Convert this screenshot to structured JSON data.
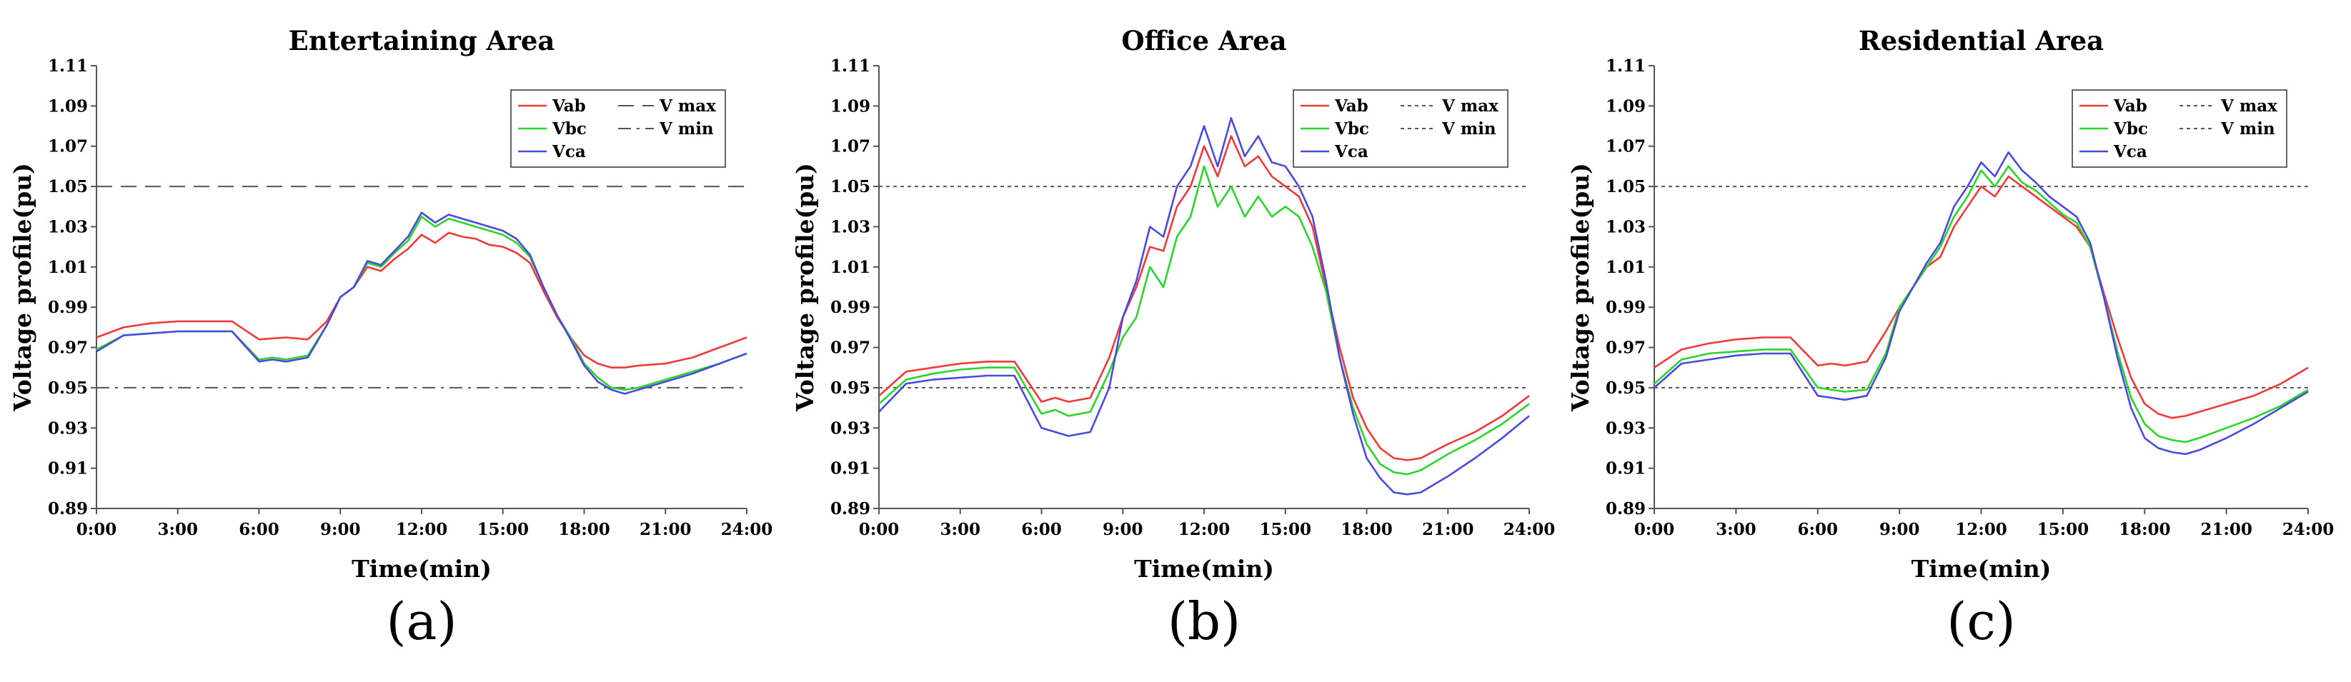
{
  "figure": {
    "panel_labels": [
      "(a)",
      "(b)",
      "(c)"
    ]
  },
  "chart_data": [
    {
      "type": "line",
      "title": "Entertaining Area",
      "xlabel": "Time(min)",
      "ylabel": "Voltage profile(pu)",
      "x_ticks": [
        "0:00",
        "3:00",
        "6:00",
        "9:00",
        "12:00",
        "15:00",
        "18:00",
        "21:00",
        "24:00"
      ],
      "y_ticks": [
        "0.89",
        "0.91",
        "0.93",
        "0.95",
        "0.97",
        "0.99",
        "1.01",
        "1.03",
        "1.05",
        "1.07",
        "1.09",
        "1.11"
      ],
      "xlim": [
        0,
        24
      ],
      "ylim": [
        0.89,
        1.11
      ],
      "grid": false,
      "legend_position": "top-right",
      "reference_lines": [
        {
          "name": "V max",
          "value": 1.05,
          "style": "dashed",
          "color": "#555555"
        },
        {
          "name": "V min",
          "value": 0.95,
          "style": "dashdot",
          "color": "#555555"
        }
      ],
      "series": [
        {
          "name": "Vab",
          "color": "#f03a3a",
          "x": [
            0,
            1,
            2,
            3,
            4,
            5,
            6,
            7,
            7.8,
            8.5,
            9,
            9.5,
            10,
            10.5,
            11,
            11.5,
            12,
            12.5,
            13,
            13.5,
            14,
            14.5,
            15,
            15.5,
            16,
            16.5,
            17,
            17.5,
            18,
            18.5,
            19,
            19.5,
            20,
            21,
            22,
            23,
            24
          ],
          "y": [
            0.975,
            0.98,
            0.982,
            0.983,
            0.983,
            0.983,
            0.974,
            0.975,
            0.974,
            0.983,
            0.995,
            1.0,
            1.01,
            1.008,
            1.014,
            1.019,
            1.026,
            1.022,
            1.027,
            1.025,
            1.024,
            1.021,
            1.02,
            1.017,
            1.012,
            0.998,
            0.985,
            0.975,
            0.966,
            0.962,
            0.96,
            0.96,
            0.961,
            0.962,
            0.965,
            0.97,
            0.975
          ]
        },
        {
          "name": "Vbc",
          "color": "#2bd62b",
          "x": [
            0,
            1,
            2,
            3,
            4,
            5,
            6,
            6.5,
            7,
            7.8,
            8.5,
            9,
            9.5,
            10,
            10.5,
            11,
            11.5,
            12,
            12.5,
            13,
            13.5,
            14,
            14.5,
            15,
            15.5,
            16,
            16.5,
            17,
            17.5,
            18,
            18.5,
            19,
            19.5,
            20,
            21,
            22,
            23,
            24
          ],
          "y": [
            0.969,
            0.976,
            0.977,
            0.978,
            0.978,
            0.978,
            0.964,
            0.965,
            0.964,
            0.966,
            0.981,
            0.995,
            1.0,
            1.012,
            1.01,
            1.017,
            1.023,
            1.035,
            1.03,
            1.034,
            1.032,
            1.03,
            1.028,
            1.026,
            1.022,
            1.015,
            1.0,
            0.986,
            0.975,
            0.962,
            0.955,
            0.95,
            0.949,
            0.95,
            0.954,
            0.958,
            0.962,
            0.967
          ]
        },
        {
          "name": "Vca",
          "color": "#4a4ae0",
          "x": [
            0,
            1,
            2,
            3,
            4,
            5,
            6,
            6.5,
            7,
            7.8,
            8.5,
            9,
            9.5,
            10,
            10.5,
            11,
            11.5,
            12,
            12.5,
            13,
            13.5,
            14,
            14.5,
            15,
            15.5,
            16,
            16.5,
            17,
            17.5,
            18,
            18.5,
            19,
            19.5,
            20,
            21,
            22,
            23,
            24
          ],
          "y": [
            0.968,
            0.976,
            0.977,
            0.978,
            0.978,
            0.978,
            0.963,
            0.964,
            0.963,
            0.965,
            0.981,
            0.995,
            1.0,
            1.013,
            1.011,
            1.018,
            1.025,
            1.037,
            1.032,
            1.036,
            1.034,
            1.032,
            1.03,
            1.028,
            1.024,
            1.016,
            1.0,
            0.986,
            0.974,
            0.961,
            0.953,
            0.949,
            0.947,
            0.949,
            0.953,
            0.957,
            0.962,
            0.967
          ]
        }
      ]
    },
    {
      "type": "line",
      "title": "Office Area",
      "xlabel": "Time(min)",
      "ylabel": "Voltage profile(pu)",
      "x_ticks": [
        "0:00",
        "3:00",
        "6:00",
        "9:00",
        "12:00",
        "15:00",
        "18:00",
        "21:00",
        "24:00"
      ],
      "y_ticks": [
        "0.89",
        "0.91",
        "0.93",
        "0.95",
        "0.97",
        "0.99",
        "1.01",
        "1.03",
        "1.05",
        "1.07",
        "1.09",
        "1.11"
      ],
      "xlim": [
        0,
        24
      ],
      "ylim": [
        0.89,
        1.11
      ],
      "grid": false,
      "legend_position": "top-right",
      "reference_lines": [
        {
          "name": "V max",
          "value": 1.05,
          "style": "dotted",
          "color": "#555555"
        },
        {
          "name": "V min",
          "value": 0.95,
          "style": "dotted",
          "color": "#555555"
        }
      ],
      "series": [
        {
          "name": "Vab",
          "color": "#f03a3a",
          "x": [
            0,
            1,
            2,
            3,
            4,
            5,
            6,
            6.5,
            7,
            7.8,
            8.5,
            9,
            9.5,
            10,
            10.5,
            11,
            11.5,
            12,
            12.5,
            13,
            13.5,
            14,
            14.5,
            15,
            15.5,
            16,
            16.5,
            17,
            17.5,
            18,
            18.5,
            19,
            19.5,
            20,
            21,
            22,
            23,
            24
          ],
          "y": [
            0.946,
            0.958,
            0.96,
            0.962,
            0.963,
            0.963,
            0.943,
            0.945,
            0.943,
            0.945,
            0.965,
            0.985,
            1.0,
            1.02,
            1.018,
            1.04,
            1.05,
            1.07,
            1.055,
            1.075,
            1.06,
            1.065,
            1.055,
            1.05,
            1.045,
            1.03,
            1.0,
            0.97,
            0.945,
            0.93,
            0.92,
            0.915,
            0.914,
            0.915,
            0.922,
            0.928,
            0.936,
            0.946
          ]
        },
        {
          "name": "Vbc",
          "color": "#2bd62b",
          "x": [
            0,
            1,
            2,
            3,
            4,
            5,
            6,
            6.5,
            7,
            7.8,
            8.5,
            9,
            9.5,
            10,
            10.5,
            11,
            11.5,
            12,
            12.5,
            13,
            13.5,
            14,
            14.5,
            15,
            15.5,
            16,
            16.5,
            17,
            17.5,
            18,
            18.5,
            19,
            19.5,
            20,
            21,
            22,
            23,
            24
          ],
          "y": [
            0.942,
            0.954,
            0.957,
            0.959,
            0.96,
            0.96,
            0.937,
            0.939,
            0.936,
            0.938,
            0.958,
            0.975,
            0.985,
            1.01,
            1.0,
            1.025,
            1.035,
            1.06,
            1.04,
            1.05,
            1.035,
            1.045,
            1.035,
            1.04,
            1.035,
            1.02,
            0.998,
            0.965,
            0.94,
            0.922,
            0.912,
            0.908,
            0.907,
            0.909,
            0.917,
            0.924,
            0.932,
            0.942
          ]
        },
        {
          "name": "Vca",
          "color": "#4a4ae0",
          "x": [
            0,
            1,
            2,
            3,
            4,
            5,
            6,
            6.5,
            7,
            7.8,
            8.5,
            9,
            9.5,
            10,
            10.5,
            11,
            11.5,
            12,
            12.5,
            13,
            13.5,
            14,
            14.5,
            15,
            15.5,
            16,
            16.5,
            17,
            17.5,
            18,
            18.5,
            19,
            19.5,
            20,
            21,
            22,
            23,
            24
          ],
          "y": [
            0.938,
            0.952,
            0.954,
            0.955,
            0.956,
            0.956,
            0.93,
            0.928,
            0.926,
            0.928,
            0.95,
            0.985,
            1.003,
            1.03,
            1.025,
            1.05,
            1.06,
            1.08,
            1.06,
            1.084,
            1.065,
            1.075,
            1.062,
            1.06,
            1.05,
            1.035,
            1.003,
            0.965,
            0.937,
            0.915,
            0.905,
            0.898,
            0.897,
            0.898,
            0.906,
            0.915,
            0.925,
            0.936
          ]
        }
      ]
    },
    {
      "type": "line",
      "title": "Residential Area",
      "xlabel": "Time(min)",
      "ylabel": "Voltage profile(pu)",
      "x_ticks": [
        "0:00",
        "3:00",
        "6:00",
        "9:00",
        "12:00",
        "15:00",
        "18:00",
        "21:00",
        "24:00"
      ],
      "y_ticks": [
        "0.89",
        "0.91",
        "0.93",
        "0.95",
        "0.97",
        "0.99",
        "1.01",
        "1.03",
        "1.05",
        "1.07",
        "1.09",
        "1.11"
      ],
      "xlim": [
        0,
        24
      ],
      "ylim": [
        0.89,
        1.11
      ],
      "grid": false,
      "legend_position": "top-right",
      "reference_lines": [
        {
          "name": "V max",
          "value": 1.05,
          "style": "dotted",
          "color": "#555555"
        },
        {
          "name": "V min",
          "value": 0.95,
          "style": "dotted",
          "color": "#555555"
        }
      ],
      "series": [
        {
          "name": "Vab",
          "color": "#f03a3a",
          "x": [
            0,
            1,
            2,
            3,
            4,
            5,
            6,
            6.5,
            7,
            7.8,
            8.5,
            9,
            9.5,
            10,
            10.5,
            11,
            11.5,
            12,
            12.5,
            13,
            13.5,
            14,
            14.5,
            15,
            15.5,
            16,
            16.5,
            17,
            17.5,
            18,
            18.5,
            19,
            19.5,
            20,
            21,
            22,
            23,
            24
          ],
          "y": [
            0.96,
            0.969,
            0.972,
            0.974,
            0.975,
            0.975,
            0.961,
            0.962,
            0.961,
            0.963,
            0.978,
            0.99,
            1.0,
            1.01,
            1.015,
            1.03,
            1.04,
            1.05,
            1.045,
            1.055,
            1.05,
            1.045,
            1.04,
            1.035,
            1.03,
            1.02,
            0.997,
            0.975,
            0.955,
            0.942,
            0.937,
            0.935,
            0.936,
            0.938,
            0.942,
            0.946,
            0.952,
            0.96
          ]
        },
        {
          "name": "Vbc",
          "color": "#2bd62b",
          "x": [
            0,
            1,
            2,
            3,
            4,
            5,
            6,
            6.5,
            7,
            7.8,
            8.5,
            9,
            9.5,
            10,
            10.5,
            11,
            11.5,
            12,
            12.5,
            13,
            13.5,
            14,
            14.5,
            15,
            15.5,
            16,
            16.5,
            17,
            17.5,
            18,
            18.5,
            19,
            19.5,
            20,
            21,
            22,
            23,
            24
          ],
          "y": [
            0.952,
            0.964,
            0.967,
            0.968,
            0.969,
            0.969,
            0.95,
            0.949,
            0.948,
            0.949,
            0.967,
            0.99,
            1.0,
            1.01,
            1.02,
            1.035,
            1.045,
            1.058,
            1.05,
            1.06,
            1.052,
            1.048,
            1.042,
            1.036,
            1.032,
            1.02,
            0.995,
            0.968,
            0.945,
            0.932,
            0.926,
            0.924,
            0.923,
            0.925,
            0.93,
            0.935,
            0.941,
            0.949
          ]
        },
        {
          "name": "Vca",
          "color": "#4a4ae0",
          "x": [
            0,
            1,
            2,
            3,
            4,
            5,
            6,
            6.5,
            7,
            7.8,
            8.5,
            9,
            9.5,
            10,
            10.5,
            11,
            11.5,
            12,
            12.5,
            13,
            13.5,
            14,
            14.5,
            15,
            15.5,
            16,
            16.5,
            17,
            17.5,
            18,
            18.5,
            19,
            19.5,
            20,
            21,
            22,
            23,
            24
          ],
          "y": [
            0.95,
            0.962,
            0.964,
            0.966,
            0.967,
            0.967,
            0.946,
            0.945,
            0.944,
            0.946,
            0.965,
            0.988,
            1.0,
            1.012,
            1.022,
            1.04,
            1.05,
            1.062,
            1.055,
            1.067,
            1.058,
            1.052,
            1.045,
            1.04,
            1.035,
            1.022,
            0.995,
            0.965,
            0.94,
            0.925,
            0.92,
            0.918,
            0.917,
            0.919,
            0.925,
            0.932,
            0.94,
            0.948
          ]
        }
      ]
    }
  ]
}
